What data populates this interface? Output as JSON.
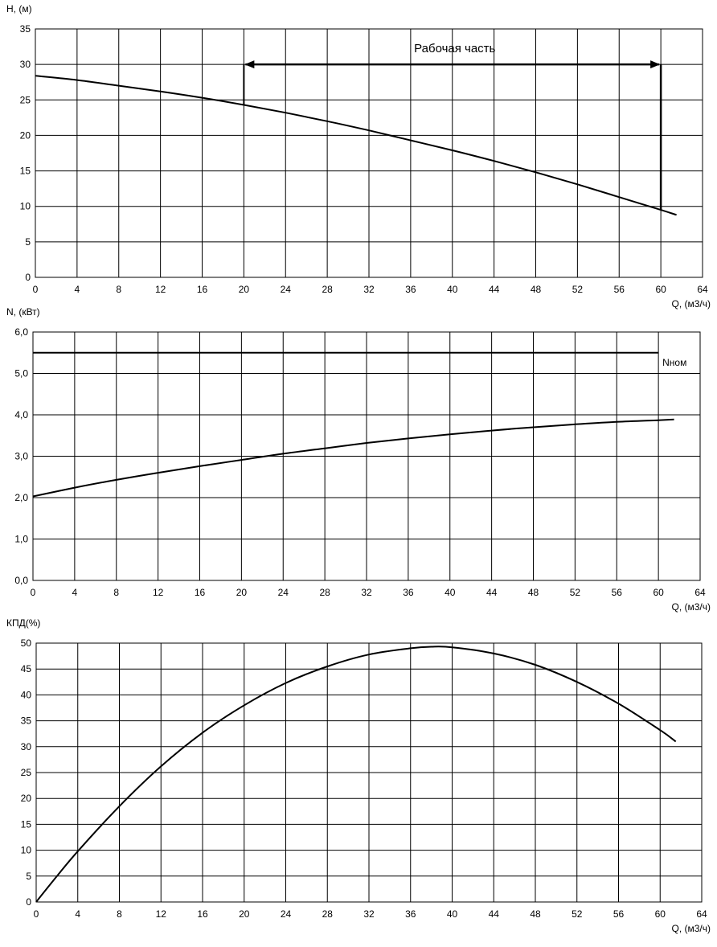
{
  "chart_data": [
    {
      "type": "line",
      "ylabel": "H, (м)",
      "xlabel": "Q, (м3/ч)",
      "xlim": [
        0,
        64
      ],
      "ylim": [
        0,
        35
      ],
      "xticks": [
        "0",
        "4",
        "8",
        "12",
        "16",
        "20",
        "24",
        "28",
        "32",
        "36",
        "40",
        "44",
        "48",
        "52",
        "56",
        "60",
        "64"
      ],
      "yticks": [
        "0",
        "5",
        "10",
        "15",
        "20",
        "25",
        "30",
        "35"
      ],
      "grid": true,
      "series": [
        {
          "x": [
            0,
            4,
            8,
            12,
            16,
            20,
            24,
            28,
            32,
            36,
            40,
            44,
            48,
            52,
            56,
            60,
            61.5
          ],
          "y": [
            28.4,
            27.8,
            27.0,
            26.2,
            25.3,
            24.3,
            23.2,
            22.0,
            20.7,
            19.3,
            17.9,
            16.4,
            14.8,
            13.1,
            11.3,
            9.5,
            8.8
          ]
        }
      ],
      "annotations": [
        {
          "text": "Рабочая часть",
          "x_start": 20,
          "x_end": 60,
          "y": 30,
          "y_at_start": 24.3,
          "y_at_end": 9.5
        }
      ]
    },
    {
      "type": "line",
      "ylabel": "N, (кВт)",
      "xlabel": "Q, (м3/ч)",
      "xlim": [
        0,
        64
      ],
      "ylim": [
        0,
        6
      ],
      "xticks": [
        "0",
        "4",
        "8",
        "12",
        "16",
        "20",
        "24",
        "28",
        "32",
        "36",
        "40",
        "44",
        "48",
        "52",
        "56",
        "60",
        "64"
      ],
      "yticks": [
        "0,0",
        "1,0",
        "2,0",
        "3,0",
        "4,0",
        "5,0",
        "6,0"
      ],
      "grid": true,
      "series": [
        {
          "x": [
            0,
            4,
            8,
            12,
            16,
            20,
            24,
            28,
            32,
            36,
            40,
            44,
            48,
            52,
            56,
            60,
            61.5
          ],
          "y": [
            2.03,
            2.24,
            2.43,
            2.6,
            2.76,
            2.91,
            3.06,
            3.19,
            3.32,
            3.43,
            3.53,
            3.62,
            3.7,
            3.77,
            3.83,
            3.87,
            3.89
          ]
        },
        {
          "name": "Nном",
          "x": [
            0,
            60
          ],
          "y": [
            5.5,
            5.5
          ]
        }
      ]
    },
    {
      "type": "line",
      "ylabel": "КПД(%)",
      "xlabel": "Q, (м3/ч)",
      "xlim": [
        0,
        64
      ],
      "ylim": [
        0,
        50
      ],
      "xticks": [
        "0",
        "4",
        "8",
        "12",
        "16",
        "20",
        "24",
        "28",
        "32",
        "36",
        "40",
        "44",
        "48",
        "52",
        "56",
        "60",
        "64"
      ],
      "yticks": [
        "0",
        "5",
        "10",
        "15",
        "20",
        "25",
        "30",
        "35",
        "40",
        "45",
        "50"
      ],
      "grid": true,
      "series": [
        {
          "x": [
            0,
            2,
            4,
            8,
            12,
            16,
            20,
            24,
            28,
            32,
            36,
            38,
            40,
            44,
            48,
            52,
            56,
            60,
            61.5
          ],
          "y": [
            0,
            5,
            9.8,
            18.5,
            26.2,
            32.7,
            38.0,
            42.3,
            45.5,
            47.8,
            49.0,
            49.3,
            49.2,
            48.0,
            45.8,
            42.5,
            38.3,
            33.2,
            31.0
          ]
        }
      ]
    }
  ]
}
